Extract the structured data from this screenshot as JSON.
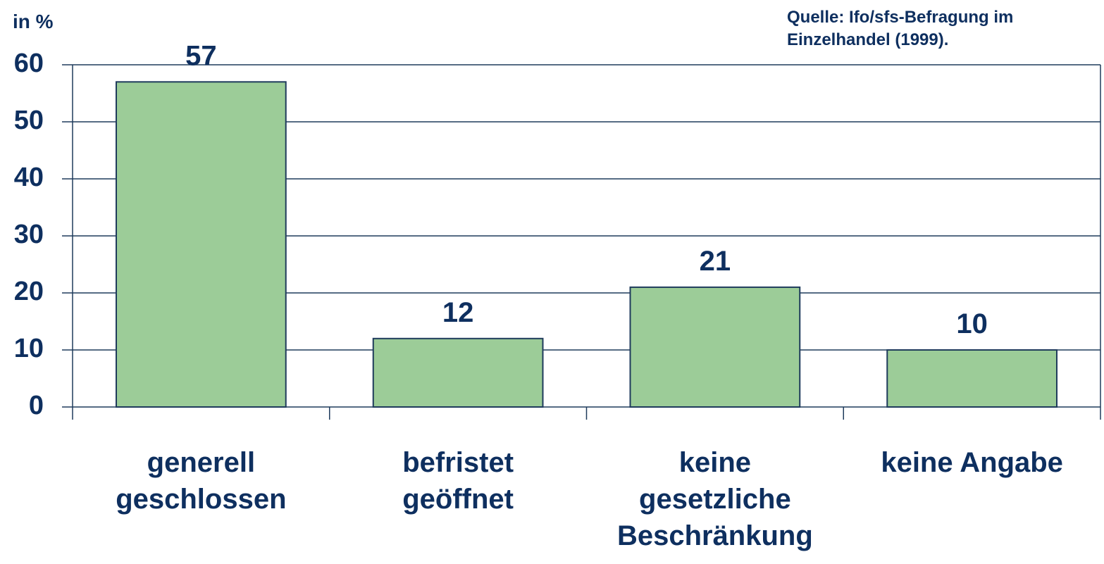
{
  "chart_data": {
    "type": "bar",
    "y_axis_label": "in %",
    "source": "Quelle: Ifo/sfs-Befragung im\nEinzelhandel (1999).",
    "categories": [
      "generell\ngeschlossen",
      "befristet\ngeöffnet",
      "keine\ngesetzliche\nBeschränkung",
      "keine Angabe"
    ],
    "values": [
      57,
      12,
      21,
      10
    ],
    "color": "#9ccc98",
    "ylim": [
      0,
      60
    ],
    "yticks": [
      0,
      10,
      20,
      30,
      40,
      50,
      60
    ],
    "grid": true
  }
}
